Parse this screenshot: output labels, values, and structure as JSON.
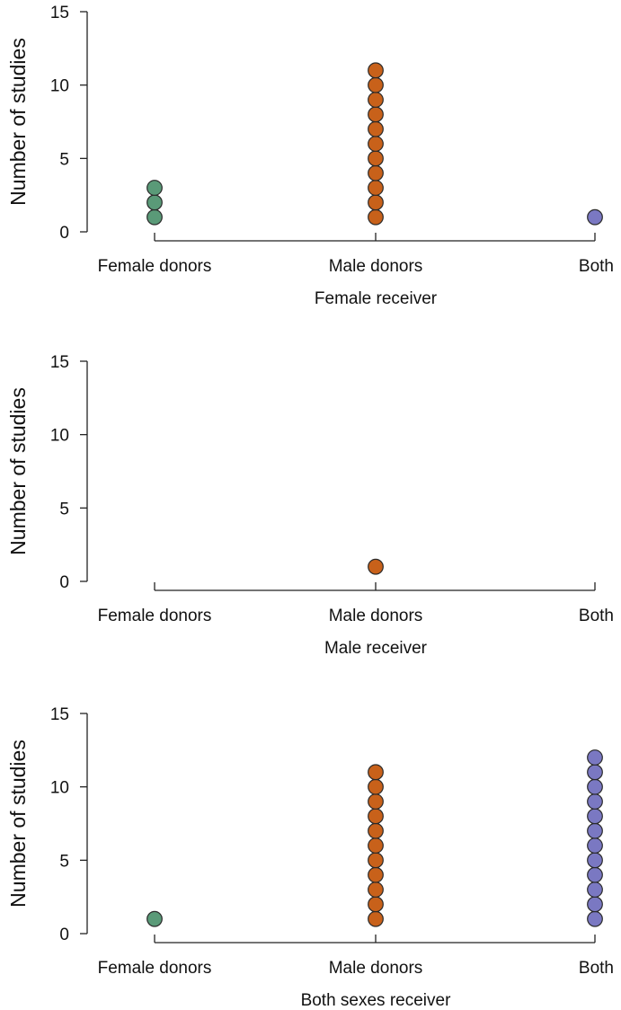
{
  "chart_data": [
    {
      "type": "scatter",
      "subtype": "dot-strip",
      "categories": [
        "Female donors",
        "Male donors",
        "Both"
      ],
      "counts": [
        3,
        11,
        1
      ],
      "xlabel": "Female receiver",
      "ylabel": "Number of studies",
      "ylim": [
        0,
        15
      ],
      "yticks": [
        0,
        5,
        10,
        15
      ],
      "grid": false
    },
    {
      "type": "scatter",
      "subtype": "dot-strip",
      "categories": [
        "Female donors",
        "Male donors",
        "Both"
      ],
      "counts": [
        0,
        1,
        0
      ],
      "xlabel": "Male receiver",
      "ylabel": "Number of studies",
      "ylim": [
        0,
        15
      ],
      "yticks": [
        0,
        5,
        10,
        15
      ],
      "grid": false
    },
    {
      "type": "scatter",
      "subtype": "dot-strip",
      "categories": [
        "Female donors",
        "Male donors",
        "Both"
      ],
      "counts": [
        1,
        11,
        12
      ],
      "xlabel": "Both sexes receiver",
      "ylabel": "Number of studies",
      "ylim": [
        0,
        15
      ],
      "yticks": [
        0,
        5,
        10,
        15
      ],
      "grid": false
    }
  ],
  "colors": {
    "female_donors": "#5a9a78",
    "male_donors": "#c8611a",
    "both": "#7a78c2",
    "axis": "#222222",
    "text": "#111111"
  }
}
